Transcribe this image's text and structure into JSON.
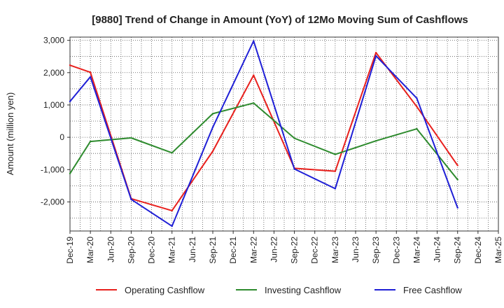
{
  "chart_data": {
    "type": "line",
    "title": "[9880]  Trend of Change in Amount (YoY) of 12Mo Moving Sum of Cashflows",
    "xlabel": "",
    "ylabel": "Amount (million yen)",
    "ylim": [
      -2900,
      3100
    ],
    "yticks": [
      3000,
      2000,
      1000,
      0,
      -1000,
      -2000
    ],
    "ytick_labels": [
      "3,000",
      "2,000",
      "1,000",
      "0",
      "-1,000",
      "-2,000"
    ],
    "categories": [
      "Dec-19",
      "Mar-20",
      "Jun-20",
      "Sep-20",
      "Dec-20",
      "Mar-21",
      "Jun-21",
      "Sep-21",
      "Dec-21",
      "Mar-22",
      "Jun-22",
      "Sep-22",
      "Dec-22",
      "Mar-23",
      "Jun-23",
      "Sep-23",
      "Dec-23",
      "Mar-24",
      "Jun-24",
      "Sep-24",
      "Dec-24",
      "Mar-25"
    ],
    "grid": true,
    "legend_position": "bottom",
    "series": [
      {
        "name": "Operating Cashflow",
        "color": "#e8201d",
        "values": [
          2230,
          2010,
          null,
          -1900,
          null,
          -2270,
          null,
          -430,
          null,
          1920,
          null,
          -960,
          null,
          -1050,
          null,
          2620,
          null,
          950,
          null,
          -870,
          null,
          null
        ]
      },
      {
        "name": "Investing Cashflow",
        "color": "#2e8b2e",
        "values": [
          -1120,
          -130,
          null,
          -20,
          null,
          -480,
          null,
          730,
          null,
          1060,
          null,
          -30,
          null,
          -530,
          null,
          -110,
          null,
          260,
          null,
          -1310,
          null,
          null
        ]
      },
      {
        "name": "Free Cashflow",
        "color": "#1f1fd6",
        "values": [
          1110,
          1870,
          null,
          -1920,
          null,
          -2750,
          null,
          310,
          null,
          2980,
          null,
          -980,
          null,
          -1590,
          null,
          2520,
          null,
          1210,
          null,
          -2180,
          null,
          null
        ]
      }
    ]
  }
}
